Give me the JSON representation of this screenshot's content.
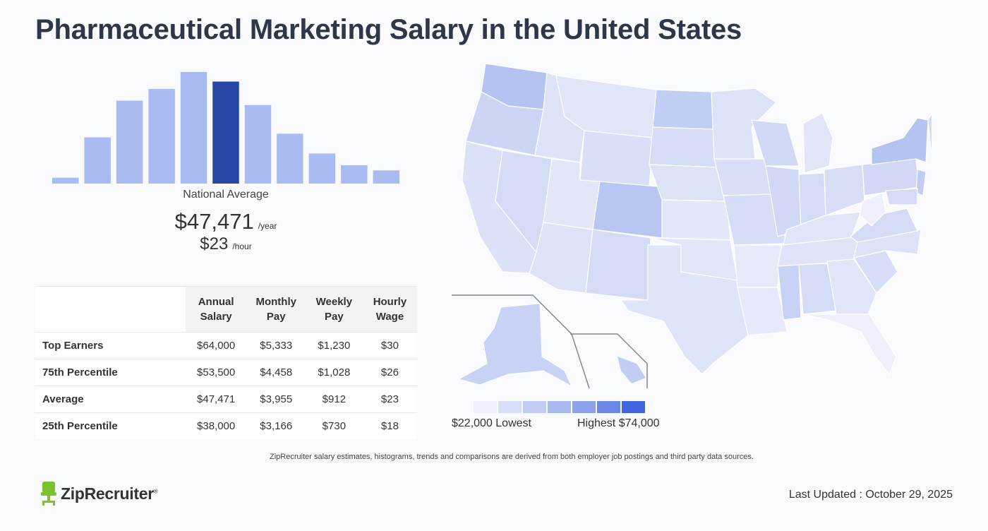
{
  "title": "Pharmaceutical Marketing Salary in the United States",
  "histogram": {
    "values": [
      8,
      63,
      113,
      129,
      152,
      139,
      107,
      68,
      41,
      25,
      18
    ],
    "highlight_index": 5,
    "bar_color": "#aabbf2",
    "highlight_color": "#2647a5"
  },
  "national": {
    "label": "National Average",
    "annual": "$47,471",
    "annual_unit": "/year",
    "hourly": "$23",
    "hourly_unit": "/hour"
  },
  "table": {
    "headers": [
      "",
      "Annual Salary",
      "Monthly Pay",
      "Weekly Pay",
      "Hourly Wage"
    ],
    "rows": [
      {
        "label": "Top Earners",
        "annual": "$64,000",
        "monthly": "$5,333",
        "weekly": "$1,230",
        "hourly": "$30"
      },
      {
        "label": "75th Percentile",
        "annual": "$53,500",
        "monthly": "$4,458",
        "weekly": "$1,028",
        "hourly": "$26"
      },
      {
        "label": "Average",
        "annual": "$47,471",
        "monthly": "$3,955",
        "weekly": "$912",
        "hourly": "$23"
      },
      {
        "label": "25th Percentile",
        "annual": "$38,000",
        "monthly": "$3,166",
        "weekly": "$730",
        "hourly": "$18"
      }
    ]
  },
  "map": {
    "legend_colors": [
      "#eef1fb",
      "#d7def8",
      "#c2cdf4",
      "#a8b8ef",
      "#8ea2ea",
      "#6e87e6",
      "#3f66e0"
    ],
    "legend_low": "$22,000 Lowest",
    "legend_high": "Highest $74,000"
  },
  "disclaimer": "ZipRecruiter salary estimates, histograms, trends and comparisons are derived from both employer job postings and third party data sources.",
  "footer": {
    "logo_text": "ZipRecruiter",
    "logo_mark": "®",
    "updated": "Last Updated : October 29, 2025"
  }
}
